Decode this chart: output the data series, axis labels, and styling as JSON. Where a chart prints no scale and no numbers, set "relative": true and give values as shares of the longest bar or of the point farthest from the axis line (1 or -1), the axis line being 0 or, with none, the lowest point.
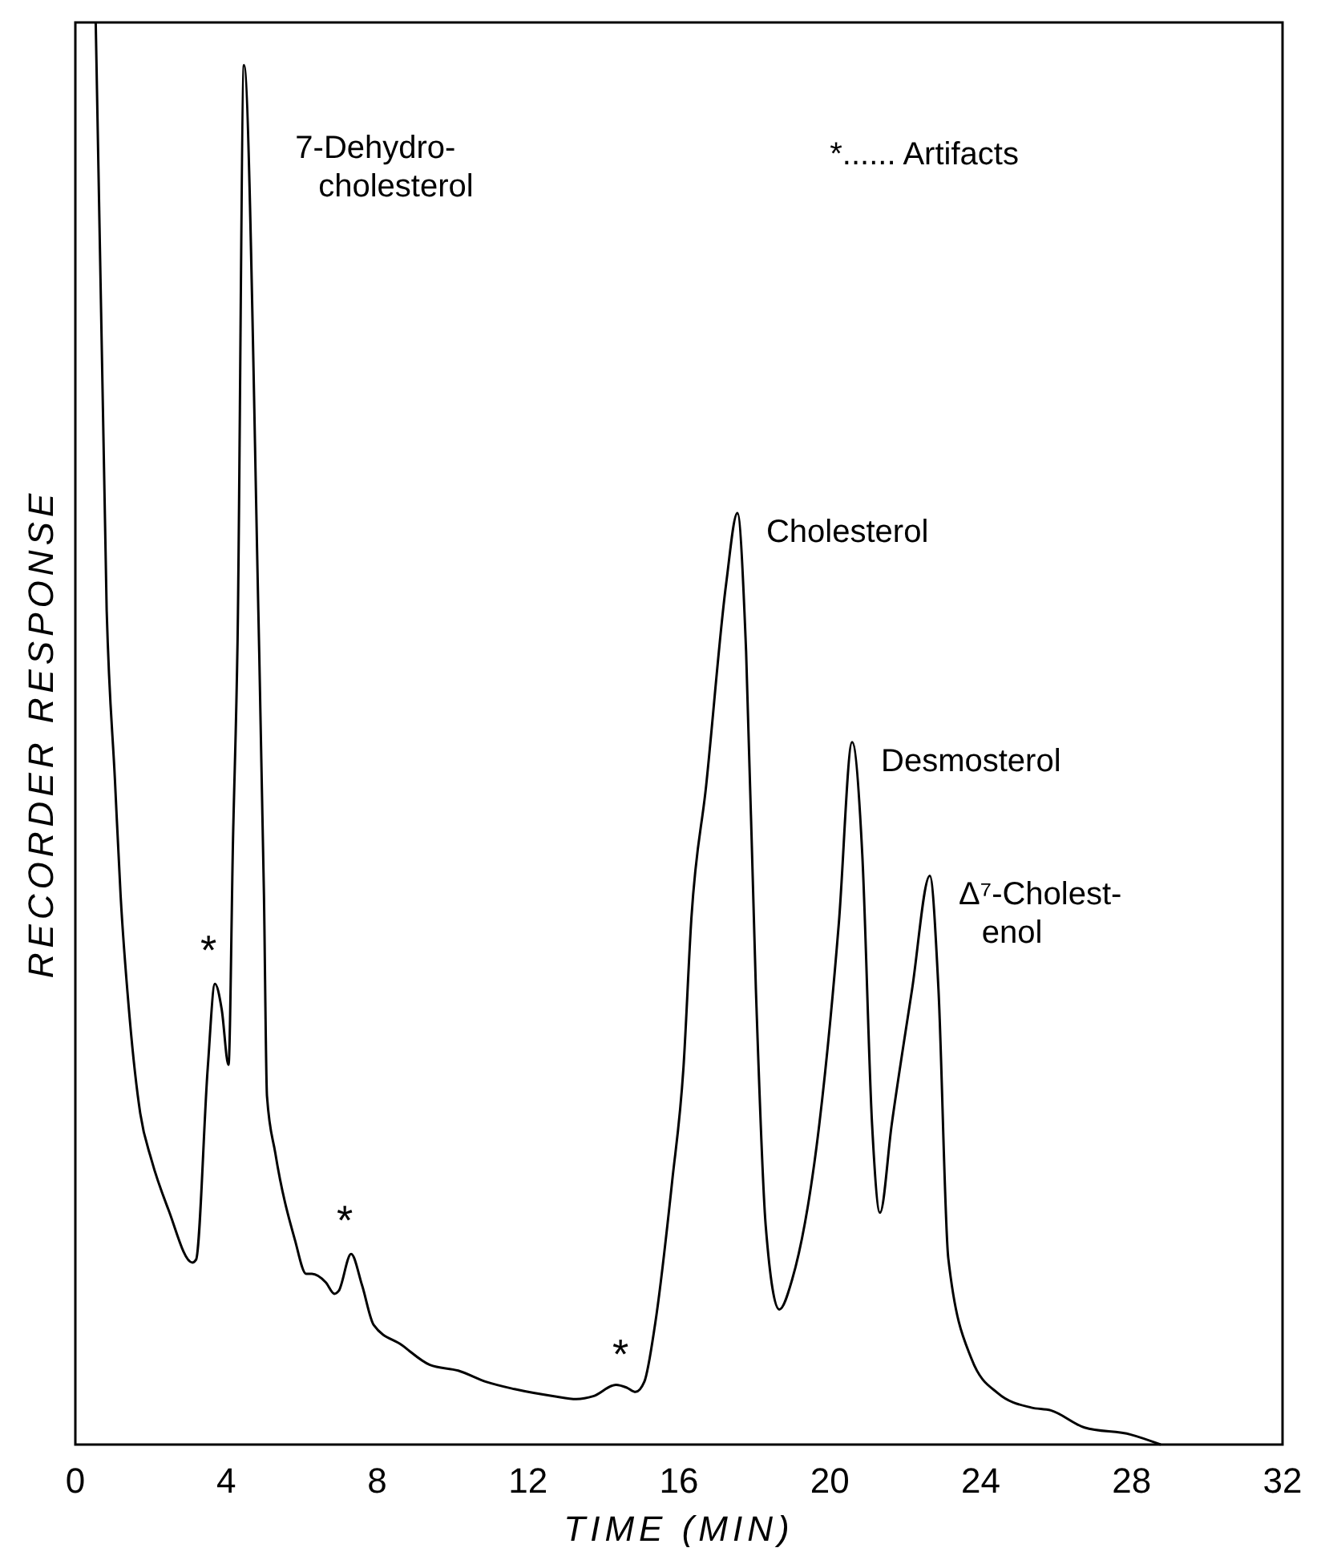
{
  "chart_data": {
    "type": "line",
    "relative": true,
    "xlabel": "TIME (MIN)",
    "ylabel": "RECORDER RESPONSE",
    "xlim": [
      0,
      32
    ],
    "xticks": [
      0,
      4,
      8,
      12,
      16,
      20,
      24,
      28,
      32
    ],
    "grid": false,
    "marker": "none",
    "line_style": "solid",
    "series": [
      {
        "color": "#000000",
        "x": [
          0.54,
          0.83,
          1.05,
          1.2,
          1.42,
          1.72,
          2.02,
          2.47,
          3.1,
          3.2,
          3.51,
          3.7,
          3.88,
          4.06,
          4.18,
          4.3,
          4.47,
          4.85,
          5.0,
          5.08,
          5.3,
          5.82,
          6.12,
          6.27,
          6.64,
          6.87,
          6.98,
          7.31,
          7.6,
          7.91,
          8.65,
          9.4,
          10.15,
          10.9,
          11.64,
          12.69,
          13.28,
          13.73,
          14.33,
          14.62,
          14.85,
          15.08,
          15.37,
          15.82,
          16.12,
          16.33,
          16.72,
          17.25,
          17.55,
          17.78,
          18.04,
          18.3,
          18.66,
          19.0,
          19.72,
          20.24,
          20.59,
          20.86,
          21.12,
          21.33,
          21.64,
          22.18,
          22.65,
          22.88,
          23.14,
          23.76,
          24.46,
          25.34,
          25.86,
          26.75,
          27.98,
          28.77
        ],
        "values": [
          1,
          0.587,
          0.467,
          0.386,
          0.306,
          0.233,
          0.2,
          0.165,
          0.128,
          0.13,
          0.265,
          0.324,
          0.306,
          0.267,
          0.426,
          0.565,
          0.97,
          0.587,
          0.386,
          0.245,
          0.205,
          0.144,
          0.12,
          0.12,
          0.114,
          0.106,
          0.108,
          0.134,
          0.112,
          0.084,
          0.07,
          0.056,
          0.052,
          0.044,
          0.039,
          0.034,
          0.032,
          0.034,
          0.042,
          0.04,
          0.037,
          0.044,
          0.085,
          0.185,
          0.265,
          0.37,
          0.463,
          0.605,
          0.655,
          0.558,
          0.32,
          0.154,
          0.095,
          0.116,
          0.225,
          0.367,
          0.494,
          0.415,
          0.225,
          0.163,
          0.225,
          0.32,
          0.4,
          0.32,
          0.131,
          0.06,
          0.036,
          0.026,
          0.024,
          0.012,
          0.007,
          0
        ]
      }
    ],
    "annotations": [
      {
        "text": "7-Dehydro-\ncholesterol",
        "x": 4.47,
        "y": 0.97
      },
      {
        "text": "Cholesterol",
        "x": 17.55,
        "y": 0.655
      },
      {
        "text": "Desmosterol",
        "x": 20.59,
        "y": 0.494
      },
      {
        "text": "Δ⁷-Cholest-\nenol",
        "x": 22.65,
        "y": 0.4
      },
      {
        "text": "*",
        "x": 3.7,
        "y": 0.324
      },
      {
        "text": "*",
        "x": 7.31,
        "y": 0.134
      },
      {
        "text": "*",
        "x": 14.62,
        "y": 0.04
      },
      "*...... Artifacts"
    ]
  }
}
